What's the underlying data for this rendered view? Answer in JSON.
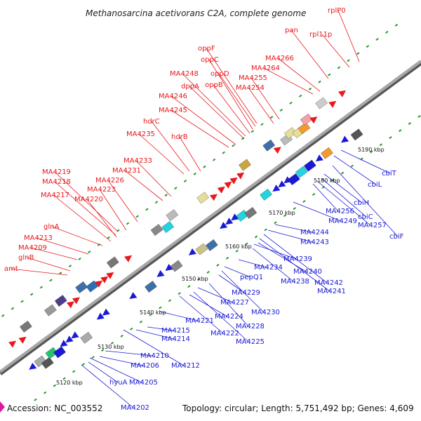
{
  "title": "Methanosarcina acetivorans C2A, complete genome",
  "footer": {
    "accession": "Accession: NC_003552",
    "topology": "Topology: circular; Length: 5,751,492 bp; Genes: 4,609"
  },
  "colors": {
    "forward_label": "#e8181c",
    "reverse_label": "#1a1ad6",
    "backbone": "#888888",
    "tick_dot": "#2a9a2a"
  },
  "kbp_ticks": [
    "5120 kbp",
    "5130 kbp",
    "5140 kbp",
    "5150 kbp",
    "5160 kbp",
    "5170 kbp",
    "5180 kbp",
    "5190 kbp"
  ],
  "forward_labels": [
    "amt",
    "glnB",
    "MA4209",
    "MA4213",
    "glnA",
    "MA4217",
    "MA4220",
    "MA4218",
    "MA4219",
    "MA4223",
    "MA4226",
    "MA4231",
    "MA4233",
    "MA4235",
    "hdrC",
    "hdrB",
    "MA4245",
    "MA4246",
    "dppA",
    "MA4248",
    "oppB",
    "oppC",
    "oppD",
    "oppF",
    "MA4254",
    "MA4255",
    "MA4264",
    "MA4266",
    "pan",
    "rpl11p",
    "rplP0"
  ],
  "reverse_labels": [
    "MA4202",
    "hyuA",
    "MA4205",
    "MA4206",
    "MA4210",
    "MA4212",
    "MA4214",
    "MA4215",
    "MA4221",
    "MA4222",
    "MA4224",
    "MA4225",
    "MA4227",
    "MA4228",
    "MA4229",
    "MA4230",
    "pepQ1",
    "MA4234",
    "MA4238",
    "MA4239",
    "MA4240",
    "MA4241",
    "MA4242",
    "MA4243",
    "MA4244",
    "MA4249",
    "MA4256",
    "MA4257",
    "cbiC",
    "cbiH",
    "cbiF",
    "cbiL",
    "cbiT"
  ]
}
